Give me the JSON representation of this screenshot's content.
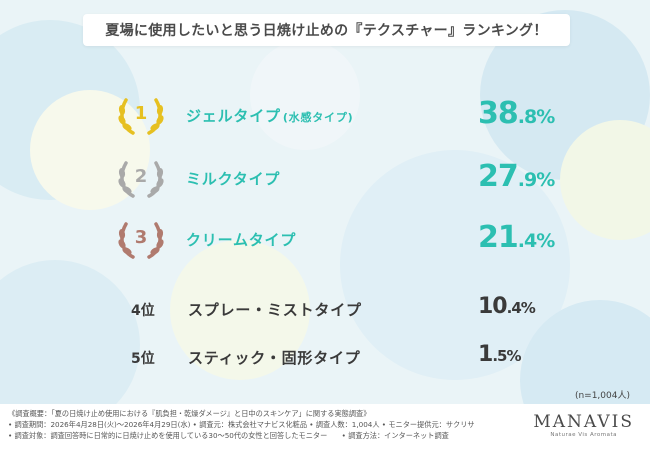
{
  "title": "夏場に使用したいと思う日焼け止めの『テクスチャー』ランキング！",
  "colors": {
    "accent": "#2cbfb1",
    "gold": "#e6c021",
    "silver": "#a9a9a9",
    "bronze": "#b07a6e",
    "text": "#3a3a3a"
  },
  "ranking": [
    {
      "rank": "1",
      "label": "ジェルタイプ",
      "sub": "(水感タイプ)",
      "pct_int": "38",
      "pct_dec": ".8%",
      "value": 38.8,
      "badge_icon": "gold-laurel-icon"
    },
    {
      "rank": "2",
      "label": "ミルクタイプ",
      "pct_int": "27",
      "pct_dec": ".9%",
      "value": 27.9,
      "badge_icon": "silver-laurel-icon"
    },
    {
      "rank": "3",
      "label": "クリームタイプ",
      "pct_int": "21",
      "pct_dec": ".4%",
      "value": 21.4,
      "badge_icon": "bronze-laurel-icon"
    },
    {
      "rank": "4位",
      "label": "スプレー・ミストタイプ",
      "pct_int": "10",
      "pct_dec": ".4%",
      "value": 10.4
    },
    {
      "rank": "5位",
      "label": "スティック・固形タイプ",
      "pct_int": "1",
      "pct_dec": ".5%",
      "value": 1.5
    }
  ],
  "sample_note": "(n=1,004人)",
  "footer": {
    "line1": "《調査概要：「夏の日焼け止め使用における『肌負担・乾燥ダメージ』と日中のスキンケア」に関する実態調査》",
    "line2": "• 調査期間：2026年4月28日(火)～2026年4月29日(水) • 調査元：株式会社マナビス化粧品 • 調査人数：1,004人 • モニター提供元：サクリサ",
    "line3": "• 調査対象：調査回答時に日常的に日焼け止めを使用している30～50代の女性と回答したモニター　　• 調査方法：インターネット調査",
    "brand": "MANAVIS",
    "brand_tag": "Naturae Vis Aromata"
  }
}
